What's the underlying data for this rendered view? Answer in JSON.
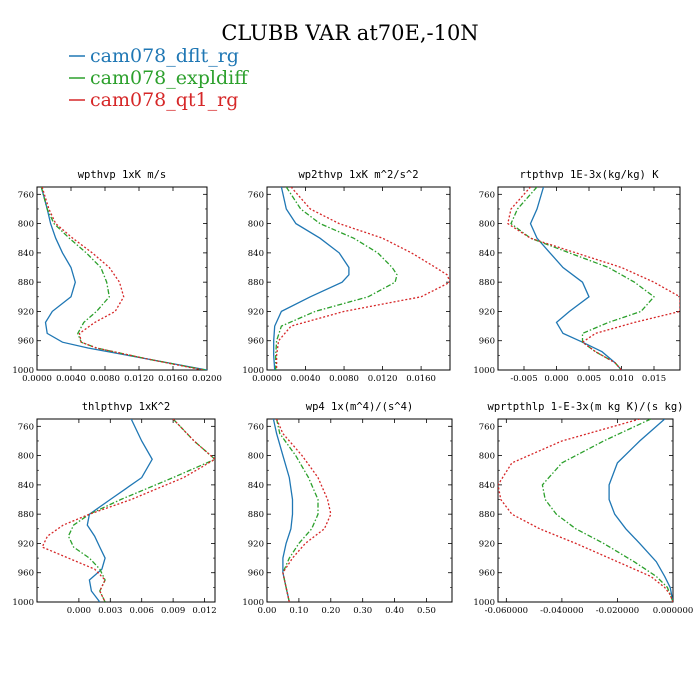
{
  "title": "CLUBB VAR at70E,-10N",
  "legend": [
    {
      "label": "cam078_dflt_rg",
      "color": "#1f77b4",
      "dash": ""
    },
    {
      "label": "cam078_expldiff",
      "color": "#2ca02c",
      "dash": "5,2,1.5,2"
    },
    {
      "label": "cam078_qt1_rg",
      "color": "#d62728",
      "dash": "2,2"
    }
  ],
  "chart_data": [
    {
      "type": "line",
      "title": "wpthvp  1xK m/s",
      "xlim": [
        0,
        0.02
      ],
      "ylim": [
        1000,
        750
      ],
      "xticks": [
        {
          "v": 0,
          "l": "0.0000"
        },
        {
          "v": 0.004,
          "l": "0.0040"
        },
        {
          "v": 0.008,
          "l": "0.0080"
        },
        {
          "v": 0.012,
          "l": "0.0120"
        },
        {
          "v": 0.016,
          "l": "0.0160"
        },
        {
          "v": 0.02,
          "l": "0.0200"
        }
      ],
      "yticks": [
        760,
        800,
        840,
        880,
        920,
        960,
        1000
      ],
      "y": [
        750,
        780,
        800,
        820,
        840,
        860,
        880,
        900,
        920,
        935,
        950,
        962,
        970,
        985,
        1000
      ],
      "series": [
        {
          "name": "cam078_dflt_rg",
          "values": [
            0.0005,
            0.0012,
            0.0016,
            0.0022,
            0.003,
            0.004,
            0.0045,
            0.004,
            0.0018,
            0.001,
            0.0012,
            0.003,
            0.006,
            0.013,
            0.02
          ]
        },
        {
          "name": "cam078_expldiff",
          "values": [
            0.0005,
            0.0012,
            0.002,
            0.0038,
            0.0058,
            0.0075,
            0.0082,
            0.0085,
            0.007,
            0.0055,
            0.0048,
            0.0052,
            0.007,
            0.013,
            0.0198
          ]
        },
        {
          "name": "cam078_qt1_rg",
          "values": [
            0.0006,
            0.0014,
            0.0022,
            0.0042,
            0.0065,
            0.0085,
            0.0097,
            0.0102,
            0.0092,
            0.0068,
            0.005,
            0.0052,
            0.007,
            0.013,
            0.0195
          ]
        }
      ]
    },
    {
      "type": "line",
      "title": "wp2thvp  1xK m^2/s^2",
      "xlim": [
        0,
        0.019
      ],
      "ylim": [
        1000,
        750
      ],
      "xticks": [
        {
          "v": 0,
          "l": "0.0000"
        },
        {
          "v": 0.004,
          "l": "0.0040"
        },
        {
          "v": 0.008,
          "l": "0.0080"
        },
        {
          "v": 0.012,
          "l": "0.0120"
        },
        {
          "v": 0.016,
          "l": "0.0160"
        }
      ],
      "yticks": [
        760,
        800,
        840,
        880,
        920,
        960,
        1000
      ],
      "y": [
        750,
        780,
        800,
        820,
        840,
        860,
        870,
        880,
        900,
        920,
        940,
        960,
        980,
        1000
      ],
      "series": [
        {
          "name": "cam078_dflt_rg",
          "values": [
            0.0015,
            0.002,
            0.003,
            0.0055,
            0.0075,
            0.0085,
            0.0085,
            0.0078,
            0.0045,
            0.0015,
            0.0008,
            0.0007,
            0.0007,
            0.0008
          ]
        },
        {
          "name": "cam078_expldiff",
          "values": [
            0.002,
            0.0035,
            0.0055,
            0.009,
            0.0115,
            0.013,
            0.0135,
            0.0133,
            0.0105,
            0.005,
            0.0015,
            0.001,
            0.0009,
            0.0009
          ]
        },
        {
          "name": "cam078_qt1_rg",
          "values": [
            0.0025,
            0.0045,
            0.0075,
            0.012,
            0.015,
            0.0175,
            0.0187,
            0.019,
            0.016,
            0.008,
            0.0025,
            0.0012,
            0.001,
            0.001
          ]
        }
      ]
    },
    {
      "type": "line",
      "title": "rtpthvp  1E-3x(kg/kg) K",
      "xlim": [
        -0.009,
        0.019
      ],
      "ylim": [
        1000,
        750
      ],
      "xticks": [
        {
          "v": -0.005,
          "l": "-0.005"
        },
        {
          "v": 0,
          "l": "0.000"
        },
        {
          "v": 0.005,
          "l": "0.005"
        },
        {
          "v": 0.01,
          "l": "0.010"
        },
        {
          "v": 0.015,
          "l": "0.015"
        }
      ],
      "yticks": [
        760,
        800,
        840,
        880,
        920,
        960,
        1000
      ],
      "y": [
        750,
        780,
        800,
        820,
        840,
        860,
        880,
        900,
        920,
        935,
        950,
        962,
        975,
        990,
        1000
      ],
      "series": [
        {
          "name": "cam078_dflt_rg",
          "values": [
            -0.002,
            -0.003,
            -0.004,
            -0.003,
            -0.001,
            0.001,
            0.004,
            0.005,
            0.002,
            0.0,
            0.001,
            0.004,
            0.007,
            0.009,
            0.01
          ]
        },
        {
          "name": "cam078_expldiff",
          "values": [
            -0.003,
            -0.006,
            -0.007,
            -0.004,
            0.002,
            0.008,
            0.012,
            0.015,
            0.013,
            0.008,
            0.004,
            0.004,
            0.006,
            0.009,
            0.01
          ]
        },
        {
          "name": "cam078_qt1_rg",
          "values": [
            -0.004,
            -0.007,
            -0.0075,
            -0.004,
            0.003,
            0.01,
            0.015,
            0.019,
            0.019,
            0.012,
            0.006,
            0.004,
            0.006,
            0.009,
            0.01
          ]
        }
      ]
    },
    {
      "type": "line",
      "title": "thlpthvp  1xK^2",
      "xlim": [
        -0.004,
        0.013
      ],
      "ylim": [
        1000,
        750
      ],
      "xticks": [
        {
          "v": 0,
          "l": "0.000"
        },
        {
          "v": 0.003,
          "l": "0.003"
        },
        {
          "v": 0.006,
          "l": "0.006"
        },
        {
          "v": 0.009,
          "l": "0.009"
        },
        {
          "v": 0.012,
          "l": "0.012"
        }
      ],
      "yticks": [
        760,
        800,
        840,
        880,
        920,
        960,
        1000
      ],
      "y": [
        750,
        780,
        805,
        830,
        860,
        880,
        895,
        910,
        925,
        940,
        955,
        970,
        985,
        1000
      ],
      "series": [
        {
          "name": "cam078_dflt_rg",
          "values": [
            0.005,
            0.006,
            0.007,
            0.006,
            0.003,
            0.001,
            0.0008,
            0.0015,
            0.002,
            0.0025,
            0.0022,
            0.001,
            0.0012,
            0.002
          ]
        },
        {
          "name": "cam078_expldiff",
          "values": [
            0.009,
            0.011,
            0.013,
            0.009,
            0.004,
            0.001,
            -0.0005,
            -0.001,
            -0.0005,
            0.001,
            0.002,
            0.0025,
            0.002,
            0.0025
          ]
        },
        {
          "name": "cam078_qt1_rg",
          "values": [
            0.009,
            0.011,
            0.013,
            0.01,
            0.005,
            0.001,
            -0.0015,
            -0.003,
            -0.0035,
            -0.001,
            0.0015,
            0.0025,
            0.002,
            0.0025
          ]
        }
      ]
    },
    {
      "type": "line",
      "title": "wp4  1x(m^4)/(s^4)",
      "xlim": [
        0,
        0.58
      ],
      "ylim": [
        1000,
        750
      ],
      "xticks": [
        {
          "v": 0,
          "l": "0.00"
        },
        {
          "v": 0.1,
          "l": "0.10"
        },
        {
          "v": 0.2,
          "l": "0.20"
        },
        {
          "v": 0.3,
          "l": "0.30"
        },
        {
          "v": 0.4,
          "l": "0.40"
        },
        {
          "v": 0.5,
          "l": "0.50"
        }
      ],
      "yticks": [
        760,
        800,
        840,
        880,
        920,
        960,
        1000
      ],
      "y": [
        750,
        770,
        800,
        830,
        860,
        880,
        900,
        920,
        940,
        960,
        980,
        1000
      ],
      "series": [
        {
          "name": "cam078_dflt_rg",
          "values": [
            0.02,
            0.03,
            0.05,
            0.07,
            0.08,
            0.08,
            0.075,
            0.06,
            0.05,
            0.05,
            0.06,
            0.07
          ]
        },
        {
          "name": "cam078_expldiff",
          "values": [
            0.03,
            0.04,
            0.09,
            0.13,
            0.16,
            0.16,
            0.14,
            0.1,
            0.07,
            0.05,
            0.06,
            0.07
          ]
        },
        {
          "name": "cam078_qt1_rg",
          "values": [
            0.03,
            0.05,
            0.11,
            0.16,
            0.19,
            0.2,
            0.18,
            0.12,
            0.08,
            0.05,
            0.06,
            0.07
          ]
        }
      ]
    },
    {
      "type": "line",
      "title": "wprtpthlp  1-E-3x(m kg K)/(s kg)",
      "xlim": [
        -0.063,
        0
      ],
      "ylim": [
        1000,
        750
      ],
      "xticks": [
        {
          "v": -0.06,
          "l": "-0.060000"
        },
        {
          "v": -0.04,
          "l": "-0.040000"
        },
        {
          "v": -0.02,
          "l": "-0.020000"
        },
        {
          "v": 0,
          "l": "0.000000"
        }
      ],
      "yticks": [
        760,
        800,
        840,
        880,
        920,
        960,
        1000
      ],
      "y": [
        750,
        780,
        810,
        840,
        860,
        880,
        900,
        920,
        945,
        965,
        980,
        990,
        1000
      ],
      "series": [
        {
          "name": "cam078_dflt_rg",
          "values": [
            -0.003,
            -0.012,
            -0.02,
            -0.023,
            -0.023,
            -0.021,
            -0.017,
            -0.012,
            -0.006,
            -0.003,
            -0.001,
            -0.0005,
            0.0
          ]
        },
        {
          "name": "cam078_expldiff",
          "values": [
            -0.008,
            -0.025,
            -0.04,
            -0.047,
            -0.046,
            -0.042,
            -0.035,
            -0.025,
            -0.014,
            -0.006,
            -0.002,
            -0.001,
            0.0
          ]
        },
        {
          "name": "cam078_qt1_rg",
          "values": [
            -0.012,
            -0.04,
            -0.058,
            -0.063,
            -0.062,
            -0.058,
            -0.048,
            -0.035,
            -0.02,
            -0.008,
            -0.003,
            -0.001,
            0.0
          ]
        }
      ]
    }
  ]
}
